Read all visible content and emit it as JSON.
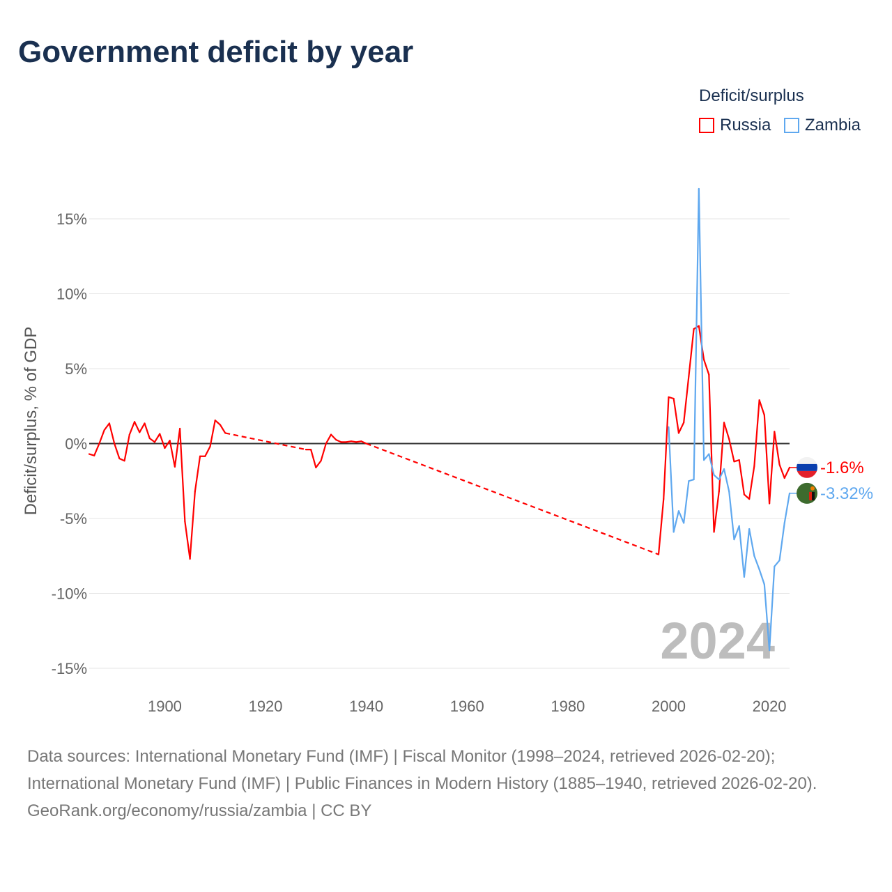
{
  "chart_data": {
    "type": "line",
    "title": "Government deficit by year",
    "xlabel": "",
    "ylabel": "Deficit/surplus, % of GDP",
    "xlim": [
      1885,
      2024
    ],
    "ylim": [
      -15,
      15
    ],
    "x_ticks": [
      1900,
      1920,
      1940,
      1960,
      1980,
      2000,
      2020
    ],
    "y_ticks": [
      15,
      10,
      5,
      0,
      -5,
      -10,
      -15
    ],
    "y_tick_labels": [
      "15%",
      "10%",
      "5%",
      "0%",
      "-5%",
      "-10%",
      "-15%"
    ],
    "legend_title": "Deficit/surplus",
    "legend_position": "top-right",
    "year_watermark": "2024",
    "series": [
      {
        "name": "Russia",
        "color": "#ff0000",
        "end_label": "-1.6%",
        "flag": "russia-flag",
        "x": [
          1885,
          1886,
          1887,
          1888,
          1889,
          1890,
          1891,
          1892,
          1893,
          1894,
          1895,
          1896,
          1897,
          1898,
          1899,
          1900,
          1901,
          1902,
          1903,
          1904,
          1905,
          1906,
          1907,
          1908,
          1909,
          1910,
          1911,
          1912,
          1928,
          1929,
          1930,
          1931,
          1932,
          1933,
          1934,
          1935,
          1936,
          1937,
          1938,
          1939,
          1940,
          1998,
          1999,
          2000,
          2001,
          2002,
          2003,
          2004,
          2005,
          2006,
          2007,
          2008,
          2009,
          2010,
          2011,
          2012,
          2013,
          2014,
          2015,
          2016,
          2017,
          2018,
          2019,
          2020,
          2021,
          2022,
          2023,
          2024
        ],
        "y": [
          -0.7,
          -0.8,
          0,
          0.9,
          1.35,
          0,
          -1.0,
          -1.15,
          0.6,
          1.45,
          0.75,
          1.35,
          0.35,
          0.1,
          0.65,
          -0.3,
          0.2,
          -1.55,
          1.0,
          -5.2,
          -7.7,
          -3.2,
          -0.85,
          -0.85,
          -0.2,
          1.55,
          1.25,
          0.7,
          -0.4,
          -0.4,
          -1.6,
          -1.15,
          0,
          0.6,
          0.25,
          0.1,
          0.1,
          0.15,
          0.1,
          0.15,
          0,
          -7.4,
          -3.7,
          3.1,
          3.0,
          0.7,
          1.4,
          4.5,
          7.65,
          7.85,
          5.6,
          4.6,
          -5.9,
          -3.2,
          1.4,
          0.3,
          -1.2,
          -1.1,
          -3.4,
          -3.7,
          -1.5,
          2.9,
          1.9,
          -4.0,
          0.8,
          -1.4,
          -2.3,
          -1.6
        ]
      },
      {
        "name": "Zambia",
        "color": "#5fa8ef",
        "end_label": "-3.32%",
        "flag": "zambia-flag",
        "x": [
          2000,
          2001,
          2002,
          2003,
          2004,
          2005,
          2006,
          2007,
          2008,
          2009,
          2010,
          2011,
          2012,
          2013,
          2014,
          2015,
          2016,
          2017,
          2018,
          2019,
          2020,
          2021,
          2022,
          2023,
          2024
        ],
        "y": [
          1.1,
          -5.9,
          -4.5,
          -5.3,
          -2.5,
          -2.4,
          17.0,
          -1.1,
          -0.7,
          -2.1,
          -2.4,
          -1.7,
          -3.2,
          -6.4,
          -5.5,
          -8.9,
          -5.7,
          -7.5,
          -8.4,
          -9.4,
          -13.8,
          -8.2,
          -7.8,
          -5.3,
          -3.32
        ]
      }
    ]
  },
  "footer": {
    "sources": "Data sources: International Monetary Fund (IMF) | Fiscal Monitor (1998–2024, retrieved 2026-02-20); International Monetary Fund (IMF) | Public Finances in Modern History (1885–1940, retrieved 2026-02-20).",
    "credit": "GeoRank.org/economy/russia/zambia | CC BY"
  }
}
